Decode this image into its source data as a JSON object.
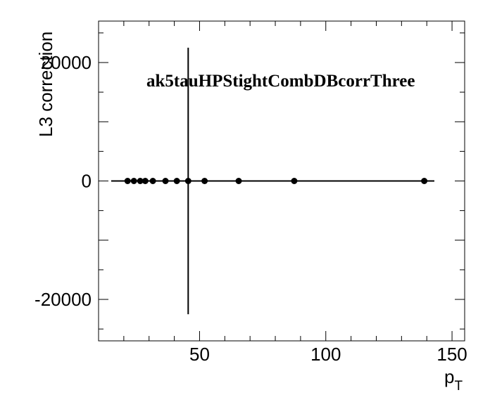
{
  "chart_data": {
    "type": "scatter",
    "title": "ak5tauHPStightCombDBcorrThree",
    "xlabel": "p",
    "xlabel_subscript": "T",
    "ylabel": "L3 correction",
    "xlim": [
      10,
      155
    ],
    "ylim": [
      -27000,
      27000
    ],
    "x_ticks": [
      50,
      100,
      150
    ],
    "y_ticks": [
      -20000,
      0,
      20000
    ],
    "x_tick_labels": [
      "50",
      "100",
      "150"
    ],
    "y_tick_labels": [
      "-20000",
      "0",
      "20000"
    ],
    "grid": false,
    "series": [
      {
        "x": [
          21.5,
          24.0,
          26.5,
          28.5,
          31.5,
          36.5,
          41.0,
          45.5,
          52.0,
          65.5,
          87.5,
          139.0
        ],
        "y": [
          0,
          0,
          0,
          0,
          0,
          0,
          0,
          0,
          0,
          0,
          0,
          0
        ],
        "x_err": [
          0,
          0,
          0,
          0,
          0,
          0,
          0,
          0,
          0,
          0,
          0,
          0
        ],
        "y_err": [
          0,
          0,
          0,
          0,
          0,
          0,
          0,
          22500,
          0,
          0,
          0,
          0
        ]
      }
    ],
    "fit_line": {
      "x": [
        15,
        143
      ],
      "y": [
        0,
        0
      ]
    },
    "colors": {
      "markers": "#000000",
      "axes": "#000000",
      "background": "#ffffff"
    }
  }
}
